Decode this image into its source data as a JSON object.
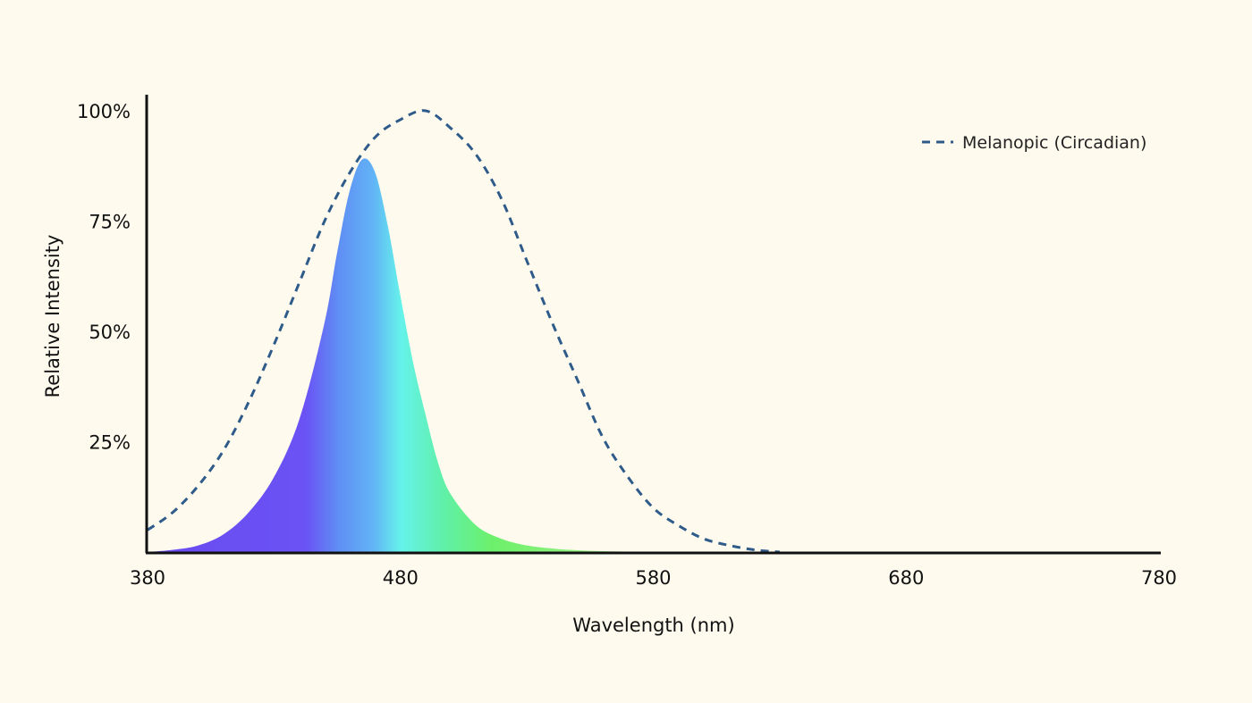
{
  "chart_data": {
    "type": "area",
    "title": "",
    "xlabel": "Wavelength (nm)",
    "ylabel": "Relative Intensity",
    "xlim": [
      380,
      780
    ],
    "ylim": [
      0,
      100
    ],
    "x_ticks": [
      380,
      480,
      580,
      680,
      780
    ],
    "x_tick_labels": [
      "380",
      "480",
      "580",
      "680",
      "780"
    ],
    "y_ticks": [
      25,
      50,
      75,
      100
    ],
    "y_tick_labels": [
      "25%",
      "50%",
      "75%",
      "100%"
    ],
    "grid": false,
    "legend_position": "top-right",
    "legend": [
      "Melanopic (Circadian)"
    ],
    "series": [
      {
        "style": "filled-spectrum",
        "x": [
          380,
          390,
          400,
          410,
          420,
          430,
          440,
          450,
          455,
          460,
          465,
          470,
          475,
          480,
          485,
          490,
          495,
          500,
          510,
          520,
          530,
          540,
          550,
          560,
          570,
          580
        ],
        "values": [
          0,
          0.5,
          1.5,
          4,
          9,
          17,
          30,
          52,
          68,
          82,
          89,
          86,
          74,
          58,
          43,
          31,
          20,
          13,
          6,
          3,
          1.5,
          0.8,
          0.4,
          0.2,
          0.1,
          0
        ]
      },
      {
        "name": "Melanopic (Circadian)",
        "style": "dashed-line",
        "color": "#2f5b8a",
        "x": [
          380,
          390,
          400,
          410,
          420,
          430,
          440,
          450,
          460,
          470,
          480,
          490,
          500,
          510,
          520,
          530,
          540,
          550,
          560,
          570,
          580,
          590,
          600,
          610,
          620,
          630
        ],
        "values": [
          5,
          9,
          15,
          23,
          34,
          47,
          61,
          75,
          86,
          94,
          98,
          100,
          96,
          90,
          80,
          66,
          52,
          39,
          26,
          17,
          10,
          6,
          3,
          1.5,
          0.5,
          0
        ]
      }
    ]
  },
  "colors": {
    "background": "#fefbee",
    "axis": "#111111",
    "melanopic_line": "#2f5b8a",
    "spectrum_violet": "#6b4cf2",
    "spectrum_blue": "#62a6f5",
    "spectrum_cyan": "#65f5e6",
    "spectrum_green": "#6cf070"
  }
}
